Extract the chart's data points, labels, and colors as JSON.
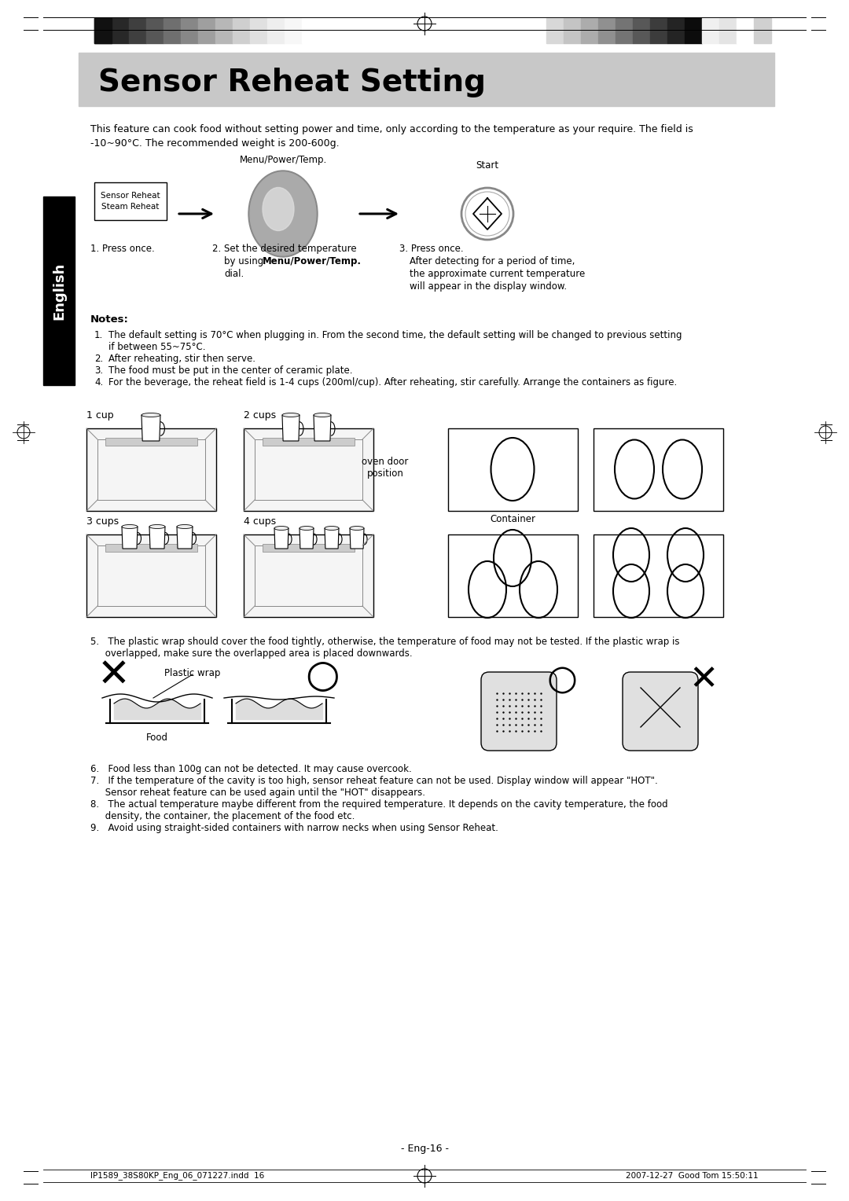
{
  "title": "Sensor Reheat Setting",
  "bg_color": "#ffffff",
  "intro_text": "This feature can cook food without setting power and time, only according to the temperature as your require. The field is\n-10~90°C. The recommended weight is 200-600g.",
  "menu_label": "Menu/Power/Temp.",
  "start_label": "Start",
  "button_box_text": "Sensor Reheat\nSteam Reheat",
  "notes_title": "Notes:",
  "notes": [
    "The default setting is 70°C when plugging in. From the second time, the default setting will be changed to previous setting\nif between 55~75°C.",
    "After reheating, stir then serve.",
    "The food must be put in the center of ceramic plate.",
    "For the beverage, the reheat field is 1-4 cups (200ml/cup). After reheating, stir carefully. Arrange the containers as figure."
  ],
  "cup_labels": [
    "1 cup",
    "2 cups",
    "3 cups",
    "4 cups"
  ],
  "note5_text_a": "5.   The plastic wrap should cover the food tightly, otherwise, the temperature of food may not be tested. If the plastic wrap is",
  "note5_text_b": "     overlapped, make sure the overlapped area is placed downwards.",
  "plastic_wrap_label": "Plastic wrap",
  "food_label": "Food",
  "notes_lower": [
    "6.   Food less than 100g can not be detected. It may cause overcook.",
    "7.   If the temperature of the cavity is too high, sensor reheat feature can not be used. Display window will appear \"HOT\".\n     Sensor reheat feature can be used again until the \"HOT\" disappears.",
    "8.   The actual temperature maybe different from the required temperature. It depends on the cavity temperature, the food\n     density, the container, the placement of the food etc.",
    "9.   Avoid using straight-sided containers with narrow necks when using Sensor Reheat."
  ],
  "page_num": "- Eng-16 -",
  "footer_left": "IP1589_38S80KP_Eng_06_071227.indd  16",
  "footer_right": "2007-12-27  Good Tom 15:50:11",
  "oven_door_label": "oven door\nposition",
  "container_label": "Container",
  "bar_colors_left": [
    "#111111",
    "#282828",
    "#3f3f3f",
    "#575757",
    "#6f6f6f",
    "#878787",
    "#9f9f9f",
    "#b7b7b7",
    "#cfcfcf",
    "#e0e0e0",
    "#eeeeee",
    "#f7f7f7",
    "#ffffff"
  ],
  "bar_colors_right": [
    "#d8d8d8",
    "#c4c4c4",
    "#acacac",
    "#909090",
    "#747474",
    "#585858",
    "#3c3c3c",
    "#242424",
    "#0c0c0c",
    "#f0f0f0",
    "#e4e4e4",
    "#ffffff",
    "#d0d0d0"
  ]
}
